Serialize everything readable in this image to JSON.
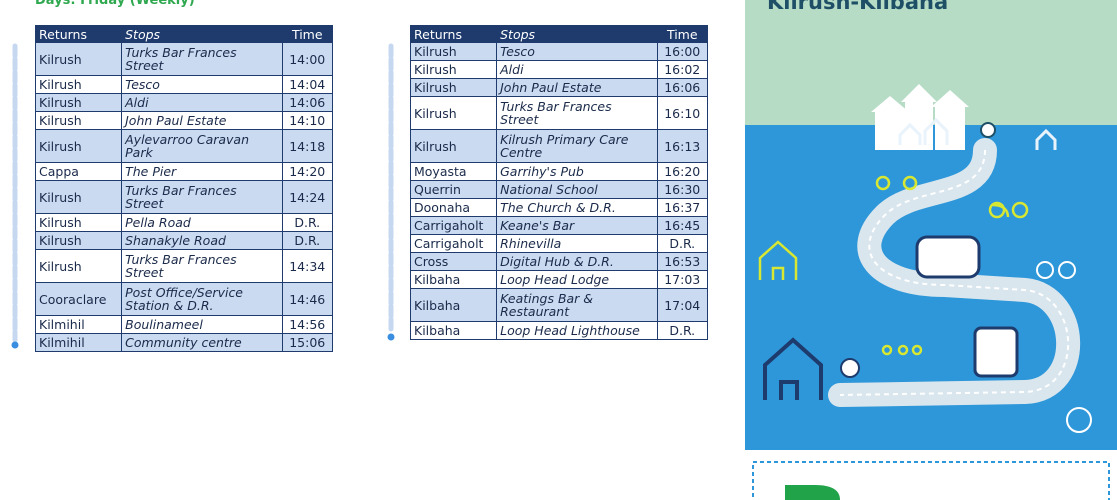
{
  "heading": "Days: Friday (Weekly)",
  "title": "Kilrush-Kilbaha",
  "tables": [
    {
      "columns": [
        "Returns",
        "Stops",
        "Time"
      ],
      "rows": [
        [
          "Kilrush",
          "Turks Bar Frances Street",
          "14:00"
        ],
        [
          "Kilrush",
          "Tesco",
          "14:04"
        ],
        [
          "Kilrush",
          "Aldi",
          "14:06"
        ],
        [
          "Kilrush",
          "John Paul Estate",
          "14:10"
        ],
        [
          "Kilrush",
          "Aylevarroo Caravan Park",
          "14:18"
        ],
        [
          "Cappa",
          "The Pier",
          "14:20"
        ],
        [
          "Kilrush",
          "Turks Bar Frances Street",
          "14:24"
        ],
        [
          "Kilrush",
          "Pella Road",
          "D.R."
        ],
        [
          "Kilrush",
          "Shanakyle Road",
          "D.R."
        ],
        [
          "Kilrush",
          "Turks Bar Frances Street",
          "14:34"
        ],
        [
          "Cooraclare",
          "Post Office/Service Station & D.R.",
          "14:46"
        ],
        [
          "Kilmihil",
          "Boulinameel",
          "14:56"
        ],
        [
          "Kilmihil",
          "Community centre",
          "15:06"
        ]
      ]
    },
    {
      "columns": [
        "Returns",
        "Stops",
        "Time"
      ],
      "rows": [
        [
          "Kilrush",
          "Tesco",
          "16:00"
        ],
        [
          "Kilrush",
          "Aldi",
          "16:02"
        ],
        [
          "Kilrush",
          "John Paul Estate",
          "16:06"
        ],
        [
          "Kilrush",
          "Turks Bar Frances Street",
          "16:10"
        ],
        [
          "Kilrush",
          "Kilrush Primary Care Centre",
          "16:13"
        ],
        [
          "Moyasta",
          "Garrihy's Pub",
          "16:20"
        ],
        [
          "Querrin",
          "National School",
          "16:30"
        ],
        [
          "Doonaha",
          "The Church & D.R.",
          "16:37"
        ],
        [
          "Carrigaholt",
          "Keane's Bar",
          "16:45"
        ],
        [
          "Carrigaholt",
          "Rhinevilla",
          "D.R."
        ],
        [
          "Cross",
          "Digital Hub & D.R.",
          "16:53"
        ],
        [
          "Kilbaha",
          "Loop Head Lodge",
          "17:03"
        ],
        [
          "Kilbaha",
          "Keatings Bar & Restaurant",
          "17:04"
        ],
        [
          "Kilbaha",
          "Loop Head Lighthouse",
          "D.R."
        ]
      ]
    }
  ]
}
